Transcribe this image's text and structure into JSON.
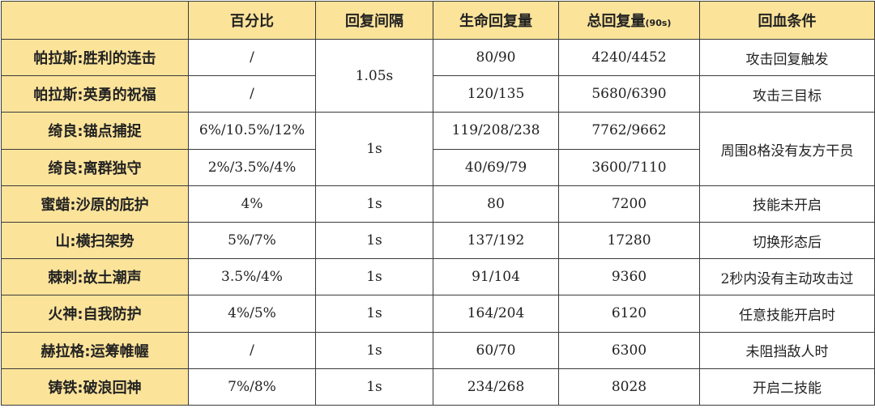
{
  "headers": {
    "skill": "",
    "percent": "百分比",
    "interval": "回复间隔",
    "regen": "生命回复量",
    "total": "总回复量",
    "total_suffix": "(90s)",
    "condition": "回血条件"
  },
  "rows": [
    {
      "skill": "帕拉斯:胜利的连击",
      "percent": "/",
      "interval": "1.05s",
      "regen": "80/90",
      "total": "4240/4452",
      "condition": "攻击回复触发"
    },
    {
      "skill": "帕拉斯:英勇的祝福",
      "percent": "/",
      "regen": "120/135",
      "total": "5680/6390",
      "condition": "攻击三目标"
    },
    {
      "skill": "绮良:锚点捕捉",
      "percent": "6%/10.5%/12%",
      "interval": "1s",
      "regen": "119/208/238",
      "total": "7762/9662",
      "condition": "周围8格没有友方干员"
    },
    {
      "skill": "绮良:离群独守",
      "percent": "2%/3.5%/4%",
      "regen": "40/69/79",
      "total": "3600/7110"
    },
    {
      "skill": "蜜蜡:沙原的庇护",
      "percent": "4%",
      "interval": "1s",
      "regen": "80",
      "total": "7200",
      "condition": "技能未开启"
    },
    {
      "skill": "山:横扫架势",
      "percent": "5%/7%",
      "interval": "1s",
      "regen": "137/192",
      "total": "17280",
      "condition": "切换形态后"
    },
    {
      "skill": "棘刺:故土潮声",
      "percent": "3.5%/4%",
      "interval": "1s",
      "regen": "91/104",
      "total": "9360",
      "condition": "2秒内没有主动攻击过"
    },
    {
      "skill": "火神:自我防护",
      "percent": "4%/5%",
      "interval": "1s",
      "regen": "164/204",
      "total": "6120",
      "condition": "任意技能开启时"
    },
    {
      "skill": "赫拉格:运筹帷幄",
      "percent": "/",
      "interval": "1s",
      "regen": "60/70",
      "total": "6300",
      "condition": "未阻挡敌人时"
    },
    {
      "skill": "铸铁:破浪回神",
      "percent": "7%/8%",
      "interval": "1s",
      "regen": "234/268",
      "total": "8028",
      "condition": "开启二技能"
    }
  ]
}
